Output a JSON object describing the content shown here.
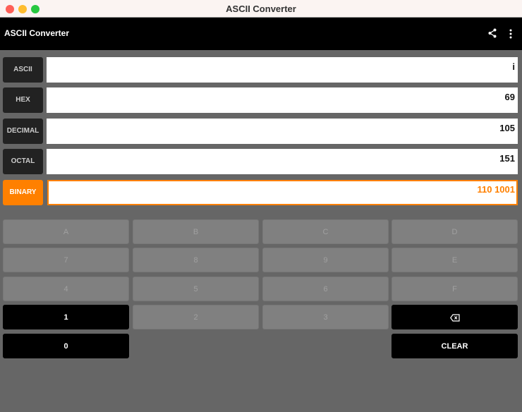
{
  "window": {
    "title": "ASCII Converter"
  },
  "appbar": {
    "title": "ASCII Converter",
    "share_icon": "share-icon",
    "menu_icon": "more-vert-icon"
  },
  "colors": {
    "accent": "#ff8000",
    "background": "#666666",
    "appbar": "#000000"
  },
  "fields": [
    {
      "label": "ASCII",
      "value": "i",
      "active": false
    },
    {
      "label": "HEX",
      "value": "69",
      "active": false
    },
    {
      "label": "DECIMAL",
      "value": "105",
      "active": false
    },
    {
      "label": "OCTAL",
      "value": "151",
      "active": false
    },
    {
      "label": "BINARY",
      "value": "110 1001",
      "active": true
    }
  ],
  "keypad": {
    "keys": [
      {
        "label": "A",
        "enabled": false
      },
      {
        "label": "B",
        "enabled": false
      },
      {
        "label": "C",
        "enabled": false
      },
      {
        "label": "D",
        "enabled": false
      },
      {
        "label": "7",
        "enabled": false
      },
      {
        "label": "8",
        "enabled": false
      },
      {
        "label": "9",
        "enabled": false
      },
      {
        "label": "E",
        "enabled": false
      },
      {
        "label": "4",
        "enabled": false
      },
      {
        "label": "5",
        "enabled": false
      },
      {
        "label": "6",
        "enabled": false
      },
      {
        "label": "F",
        "enabled": false
      },
      {
        "label": "1",
        "enabled": true
      },
      {
        "label": "2",
        "enabled": false
      },
      {
        "label": "3",
        "enabled": false
      }
    ],
    "backspace_icon": "backspace-icon",
    "zero": "0",
    "clear": "CLEAR"
  }
}
